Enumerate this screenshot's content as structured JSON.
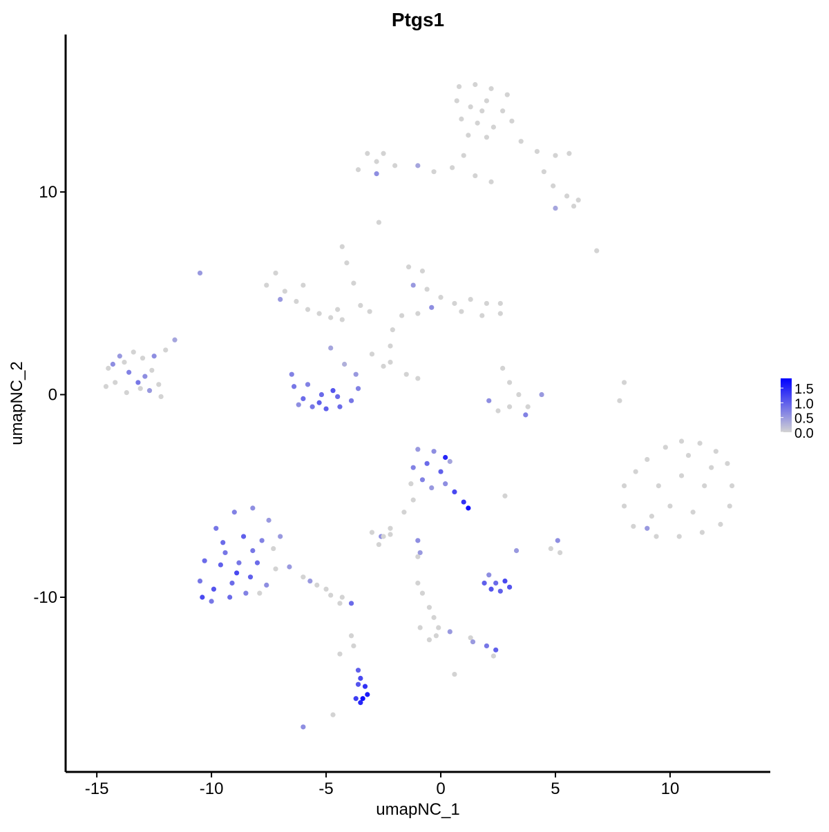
{
  "chart_data": {
    "type": "scatter",
    "title": "Ptgs1",
    "x_label": "umapNC_1",
    "y_label": "umapNC_2",
    "xlim": [
      -16.36,
      14.37
    ],
    "ylim": [
      -18.62,
      17.77
    ],
    "xticks": [
      -15,
      -10,
      -5,
      0,
      5,
      10
    ],
    "yticks": [
      -10,
      0,
      10
    ],
    "low_color": "#d3d3d3",
    "high_color": "#0000ff",
    "clim": [
      0,
      1.83
    ],
    "colorbar_ticks": [
      {
        "value": 0,
        "label": "0.0"
      },
      0.5,
      {
        "value": 1,
        "label": "1.0"
      },
      1.5
    ],
    "x": [
      0.8,
      1.5,
      2.2,
      2.9,
      0.7,
      1.3,
      2,
      2.7,
      3.1,
      0.9,
      1.6,
      2.3,
      1.2,
      2.0,
      1.8,
      3.5,
      4.2,
      5,
      5.6,
      4.5,
      4.9,
      5.5,
      6.0,
      5.0,
      5.8,
      1.0,
      0.5,
      -0.3,
      -1,
      -2,
      -2.8,
      -3.2,
      -2.5,
      -3.6,
      -2.8,
      1.5,
      2.2,
      -2.7,
      6.8,
      -14.5,
      -14.2,
      -13.8,
      -13.4,
      -13,
      -12.6,
      -12.3,
      -13.1,
      -13.7,
      -14.6,
      -12.9,
      -13.6,
      -14.0,
      -12.5,
      -13.2,
      -12.2,
      -12.0,
      -11.6,
      -14.3,
      -12.7,
      -10.5,
      -7.6,
      -7.2,
      -6.8,
      -6.3,
      -5.8,
      -5.3,
      -4.8,
      -4.3,
      -7.0,
      -6.0,
      -4.5,
      -4.3,
      -4.1,
      -3.8,
      -3.5,
      -3.1,
      -1.4,
      -0.8,
      -1.2,
      -0.6,
      0,
      0.6,
      1.3,
      2.0,
      2.6,
      1.8,
      -0.4,
      -1.7,
      -2.1,
      -2.2,
      -1.0,
      0.9,
      2.6,
      -6.5,
      -6.4,
      -6.0,
      -5.6,
      -5.0,
      -4.4,
      -3.9,
      -3.6,
      -3.7,
      -4.2,
      -5.2,
      -4.7,
      -5.8,
      -4.8,
      -4.5,
      -6.2,
      -5.3,
      -3.0,
      -2.2,
      -1.5,
      -1.0,
      -2.5,
      2.7,
      3.0,
      3.4,
      3.0,
      2.5,
      3.8,
      4.4,
      2.1,
      3.7,
      8.0,
      7.8,
      8.0,
      8.5,
      9.0,
      9.8,
      10.5,
      11.3,
      12.0,
      12.5,
      12.7,
      12.6,
      12.2,
      11.4,
      10.4,
      9.4,
      8.4,
      8.0,
      9.5,
      10.5,
      11.5,
      10.0,
      11.0,
      9.2,
      11.8,
      10.8,
      9.0,
      -1.0,
      -0.3,
      -1.2,
      -0.6,
      0,
      -0.8,
      0.2,
      0.6,
      1.0,
      1.2,
      0.4,
      -0.4,
      -1.3,
      0.2,
      -1.2,
      -1.6,
      2.8,
      -2.2,
      -2.6,
      -3.0,
      -2.7,
      -2.2,
      -1.0,
      -2.5,
      -9.8,
      -9.0,
      -8.2,
      -7.5,
      -9.5,
      -8.6,
      -7.8,
      -7.3,
      -10.3,
      -9.6,
      -8.8,
      -8.0,
      -7.2,
      -10.5,
      -9.9,
      -9.1,
      -8.3,
      -7.6,
      -10.0,
      -9.2,
      -8.5,
      -7.9,
      -9.4,
      -8.2,
      -8.9,
      -10.4,
      -7.0,
      -6.6,
      -6.0,
      -5.4,
      -4.8,
      -4.4,
      -3.9,
      -5.0,
      -4.3,
      -5.7,
      -3.9,
      -3.8,
      -4.4,
      -3.6,
      -3.5,
      -3.3,
      -3.2,
      -3.5,
      -3.7,
      -3.4,
      -3.6,
      -6.0,
      -4.7,
      1.9,
      2.2,
      2.6,
      3.0,
      2.4,
      2.1,
      2.8,
      3.3,
      5.1,
      4.8,
      5.2,
      -0.9,
      -1.0,
      -1.0,
      -0.8,
      -0.5,
      -0.3,
      -0.1,
      -0.9,
      -0.2,
      -0.5,
      0.4,
      1.3,
      2.0,
      2.4,
      2.3,
      1.4,
      0.6
    ],
    "y": [
      15.2,
      15.3,
      15.1,
      14.8,
      14.5,
      14.2,
      14.5,
      14,
      13.5,
      13.6,
      13.4,
      13.2,
      12.8,
      12.7,
      14.0,
      12.5,
      12,
      11.8,
      11.9,
      11,
      10.3,
      9.8,
      9.6,
      9.2,
      9.3,
      11.8,
      11.2,
      11.0,
      11.3,
      11.3,
      11.5,
      11.9,
      11.9,
      11.1,
      10.9,
      10.8,
      10.5,
      8.5,
      7.1,
      1.3,
      0.6,
      1.6,
      2.1,
      1.8,
      1.2,
      0.5,
      0.3,
      0.1,
      0.4,
      0.9,
      1.1,
      1.9,
      1.9,
      0.6,
      -0.1,
      2.2,
      2.7,
      1.5,
      0.2,
      6.0,
      5.4,
      6.0,
      5.1,
      4.6,
      4.2,
      4.0,
      3.8,
      3.7,
      4.7,
      5.4,
      4.2,
      7.3,
      6.5,
      5.5,
      4.4,
      4.1,
      6.3,
      6.1,
      5.4,
      5.2,
      4.8,
      4.5,
      4.7,
      4.5,
      4.0,
      3.9,
      4.3,
      3.9,
      3.2,
      2.4,
      4.0,
      4.1,
      4.5,
      1.0,
      0.4,
      -0.2,
      -0.6,
      -0.7,
      -0.6,
      -0.3,
      0.3,
      1.0,
      1.5,
      0.0,
      0.2,
      0.5,
      2.3,
      -0.1,
      -0.5,
      -0.4,
      2.0,
      1.6,
      1.0,
      0.8,
      1.4,
      1.3,
      0.6,
      0.0,
      -0.6,
      -0.8,
      -0.6,
      0.0,
      -0.3,
      -1.0,
      0.6,
      -0.3,
      -4.5,
      -3.8,
      -3.2,
      -2.6,
      -2.3,
      -2.4,
      -2.8,
      -3.4,
      -4.5,
      -5.5,
      -6.4,
      -6.8,
      -7.0,
      -7.0,
      -6.5,
      -5.5,
      -4.5,
      -4.0,
      -4.5,
      -5.5,
      -5.8,
      -6.0,
      -3.6,
      -3.0,
      -6.6,
      -2.7,
      -2.8,
      -3.6,
      -3.4,
      -3.8,
      -4.2,
      -4.4,
      -4.8,
      -5.3,
      -5.6,
      -3.3,
      -4.6,
      -4.4,
      -3.1,
      -5.2,
      -5.8,
      -5.0,
      -6.6,
      -7.0,
      -6.8,
      -7.4,
      -6.9,
      -7.2,
      -7.0,
      -6.6,
      -5.8,
      -5.6,
      -6.2,
      -7.3,
      -7.0,
      -7.2,
      -7.6,
      -8.2,
      -8.4,
      -8.3,
      -8.3,
      -8.6,
      -9.2,
      -9.6,
      -9.3,
      -9.0,
      -9.4,
      -10.2,
      -10.0,
      -9.8,
      -9.8,
      -7.8,
      -7.7,
      -8.8,
      -10.0,
      -7.0,
      -8.5,
      -9.0,
      -9.4,
      -9.9,
      -10.3,
      -10.3,
      -9.6,
      -10.0,
      -9.2,
      -11.9,
      -12.4,
      -12.8,
      -13.6,
      -14.0,
      -14.4,
      -14.8,
      -15.2,
      -15.0,
      -15.0,
      -14.3,
      -16.4,
      -15.8,
      -9.3,
      -9.6,
      -9.7,
      -9.5,
      -9.3,
      -8.9,
      -9.2,
      -7.7,
      -7.2,
      -7.6,
      -7.8,
      -7.8,
      -8.0,
      -9.3,
      -9.8,
      -10.5,
      -11.0,
      -11.5,
      -11.5,
      -11.9,
      -12.1,
      -11.7,
      -12.0,
      -12.4,
      -12.6,
      -12.9,
      -12.2,
      -13.8
    ],
    "values": [
      0,
      0,
      0,
      0,
      0,
      0,
      0,
      0,
      0,
      0,
      0,
      0,
      0,
      0,
      0,
      0,
      0,
      0,
      0,
      0,
      0,
      0,
      0,
      0.4,
      0,
      0,
      0,
      0,
      0.4,
      0,
      0,
      0,
      0,
      0,
      0.6,
      0,
      0,
      0,
      0,
      0,
      0,
      0,
      0,
      0,
      0,
      0,
      0,
      0,
      0,
      0.6,
      0.7,
      0.5,
      0.6,
      0.8,
      0,
      0,
      0.4,
      0.6,
      0.5,
      0.5,
      0,
      0,
      0,
      0,
      0,
      0,
      0,
      0,
      0.5,
      0,
      0,
      0,
      0,
      0,
      0,
      0,
      0,
      0,
      0.5,
      0,
      0,
      0,
      0,
      0,
      0,
      0,
      0.6,
      0,
      0,
      0,
      0,
      0,
      0,
      0.7,
      0.8,
      0.9,
      0.8,
      1.0,
      0.9,
      0.8,
      0.7,
      0.5,
      0.3,
      0.9,
      1.1,
      0.7,
      0.4,
      0.9,
      0.6,
      1.0,
      0,
      0,
      0,
      0,
      0,
      0,
      0,
      0,
      0,
      0,
      0,
      0.5,
      0.6,
      0.7,
      0,
      0,
      0,
      0,
      0,
      0,
      0,
      0,
      0,
      0,
      0,
      0,
      0,
      0,
      0,
      0,
      0,
      0,
      0,
      0,
      0,
      0,
      0,
      0,
      0,
      0,
      0.5,
      0.5,
      0.6,
      0.7,
      0.9,
      1.0,
      0.7,
      0.6,
      1.2,
      1.4,
      1.7,
      0.4,
      0.5,
      0,
      1.5,
      0,
      0,
      0,
      0,
      0.6,
      0,
      0,
      0,
      0.6,
      0,
      0.8,
      0.7,
      0.6,
      0.5,
      0.9,
      1.0,
      0.7,
      0,
      0.9,
      1.0,
      0.8,
      0.9,
      0,
      0.8,
      1.1,
      0.9,
      1.0,
      0.6,
      0.8,
      0.9,
      0.7,
      0,
      0.8,
      0.8,
      1.2,
      1.2,
      0.5,
      0.5,
      0,
      0,
      0,
      0,
      0.9,
      0,
      0,
      0.5,
      0,
      0,
      0,
      1.0,
      1.2,
      1.4,
      1.6,
      1.5,
      1.3,
      1.7,
      1.1,
      0.6,
      0,
      1.0,
      1.1,
      1.0,
      1.1,
      0.9,
      0.6,
      1.2,
      0.5,
      0.6,
      0,
      0,
      0.5,
      0,
      0,
      0,
      0,
      0,
      0,
      0,
      0,
      0,
      0.5,
      0,
      0.8,
      1.0,
      0,
      0.5,
      0
    ]
  }
}
